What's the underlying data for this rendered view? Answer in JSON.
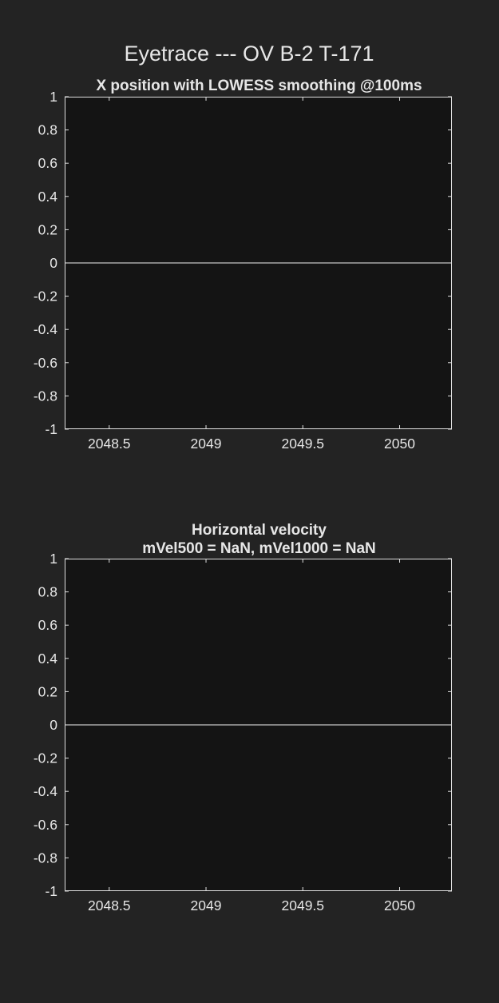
{
  "figure": {
    "title": "Eyetrace --- OV B-2 T-171",
    "background": "#232323",
    "axes_background": "#141414",
    "axes_edge_color": "#e0e0e0",
    "text_color": "#e6e6e6",
    "line_color": "#a8a8a8"
  },
  "chart_data": [
    {
      "type": "line",
      "title": "X position with LOWESS smoothing @100ms",
      "title_lines": [
        "X position with LOWESS smoothing @100ms"
      ],
      "xlabel": "",
      "ylabel": "",
      "xlim": [
        2048.27,
        2050.27
      ],
      "ylim": [
        -1,
        1
      ],
      "xticks": [
        2048.5,
        2049,
        2049.5,
        2050
      ],
      "xtick_labels": [
        "2048.5",
        "2049",
        "2049.5",
        "2050"
      ],
      "yticks": [
        1,
        0.8,
        0.6,
        0.4,
        0.2,
        0,
        -0.2,
        -0.4,
        -0.6,
        -0.8,
        -1
      ],
      "ytick_labels": [
        "1",
        "0.8",
        "0.6",
        "0.4",
        "0.2",
        "0",
        "-0.2",
        "-0.4",
        "-0.6",
        "-0.8",
        "-1"
      ],
      "grid": false,
      "series": [
        {
          "x": [
            2048.27,
            2050.27
          ],
          "y": [
            0,
            0
          ]
        }
      ]
    },
    {
      "type": "line",
      "title": "Horizontal velocity\nmVel500 = NaN, mVel1000 = NaN",
      "title_lines": [
        "Horizontal velocity",
        "mVel500 = NaN, mVel1000 = NaN"
      ],
      "xlabel": "",
      "ylabel": "",
      "xlim": [
        2048.27,
        2050.27
      ],
      "ylim": [
        -1,
        1
      ],
      "xticks": [
        2048.5,
        2049,
        2049.5,
        2050
      ],
      "xtick_labels": [
        "2048.5",
        "2049",
        "2049.5",
        "2050"
      ],
      "yticks": [
        1,
        0.8,
        0.6,
        0.4,
        0.2,
        0,
        -0.2,
        -0.4,
        -0.6,
        -0.8,
        -1
      ],
      "ytick_labels": [
        "1",
        "0.8",
        "0.6",
        "0.4",
        "0.2",
        "0",
        "-0.2",
        "-0.4",
        "-0.6",
        "-0.8",
        "-1"
      ],
      "grid": false,
      "series": [
        {
          "x": [
            2048.27,
            2050.27
          ],
          "y": [
            0,
            0
          ]
        }
      ]
    }
  ]
}
